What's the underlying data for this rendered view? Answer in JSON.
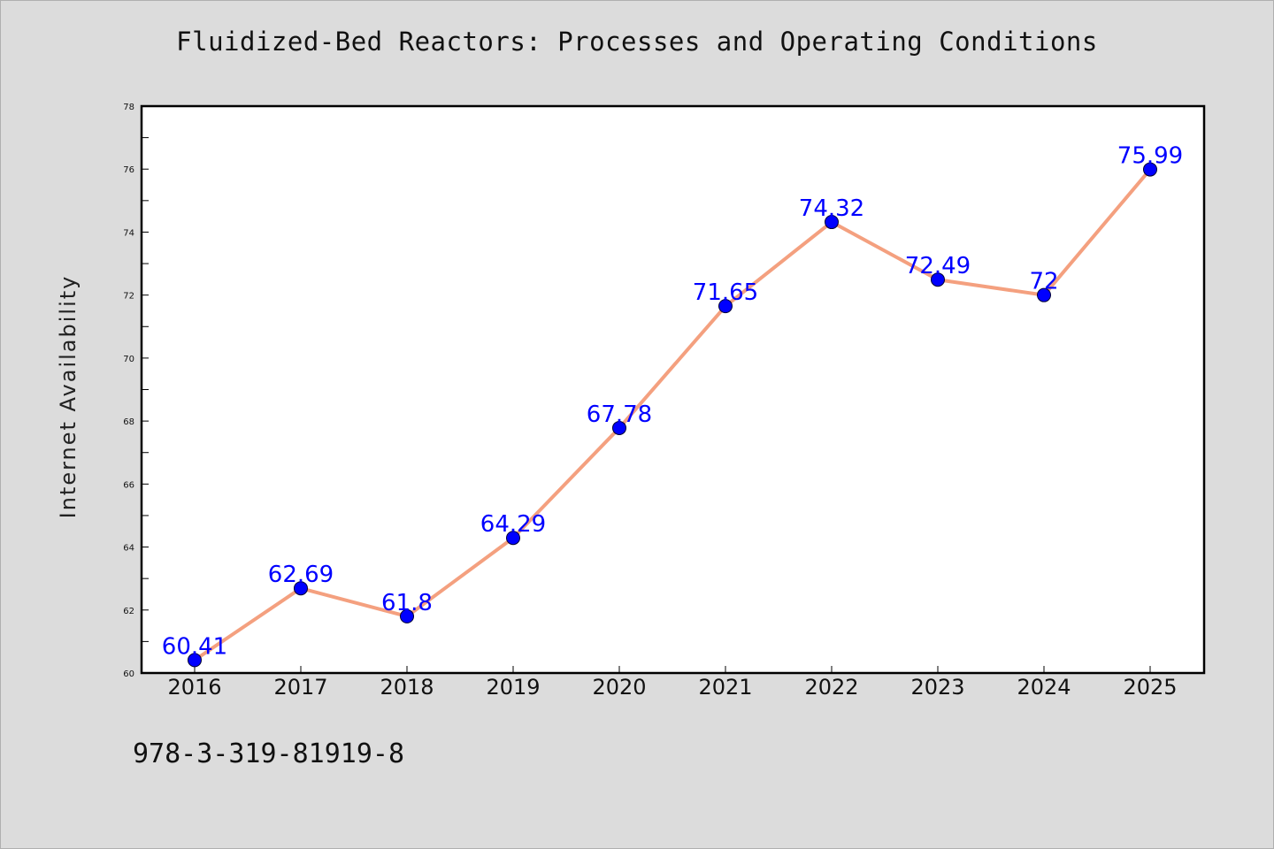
{
  "chart_data": {
    "type": "line",
    "title": "Fluidized-Bed Reactors: Processes and Operating Conditions",
    "xlabel": "",
    "ylabel": "Internet Availability",
    "categories": [
      "2016",
      "2017",
      "2018",
      "2019",
      "2020",
      "2021",
      "2022",
      "2023",
      "2024",
      "2025"
    ],
    "series": [
      {
        "values": [
          60.41,
          62.69,
          61.8,
          64.29,
          67.78,
          71.65,
          74.32,
          72.49,
          72,
          75.99
        ],
        "value_labels": [
          "60.41",
          "62.69",
          "61.8",
          "64.29",
          "67.78",
          "71.65",
          "74.32",
          "72.49",
          "72",
          "75.99"
        ],
        "line_color": "#f4a07f",
        "marker_color": "#0000ff"
      }
    ],
    "ylim": [
      60,
      78
    ],
    "yticks": [
      60,
      62,
      64,
      66,
      68,
      70,
      72,
      74,
      76,
      78
    ],
    "grid": false,
    "legend": "none"
  },
  "footer": {
    "isbn": "978-3-319-81919-8"
  },
  "colors": {
    "background": "#dcdcdc",
    "plot_background": "#ffffff",
    "line": "#f4a07f",
    "marker": "#0000ff",
    "label": "#0000ff"
  }
}
